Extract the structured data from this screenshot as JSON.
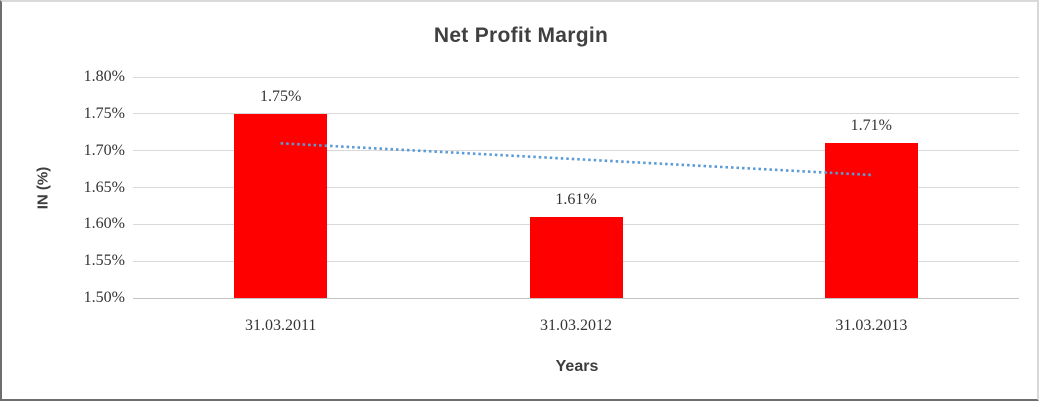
{
  "chart_data": {
    "type": "bar",
    "title": "Net Profit Margin",
    "xlabel": "Years",
    "ylabel": "IN (%)",
    "categories": [
      "31.03.2011",
      "31.03.2012",
      "31.03.2013"
    ],
    "values": [
      1.75,
      1.61,
      1.71
    ],
    "data_labels": [
      "1.75%",
      "1.61%",
      "1.71%"
    ],
    "ylim": [
      1.5,
      1.8
    ],
    "ytick_step": 0.05,
    "ytick_labels": [
      "1.50%",
      "1.55%",
      "1.60%",
      "1.65%",
      "1.70%",
      "1.75%",
      "1.80%"
    ],
    "grid": true,
    "legend": "none",
    "bar_color": "#ff0000",
    "trendline": {
      "type": "linear",
      "style": "dotted",
      "color": "#5b9bd5",
      "start_value": 1.71,
      "end_value": 1.667
    }
  }
}
